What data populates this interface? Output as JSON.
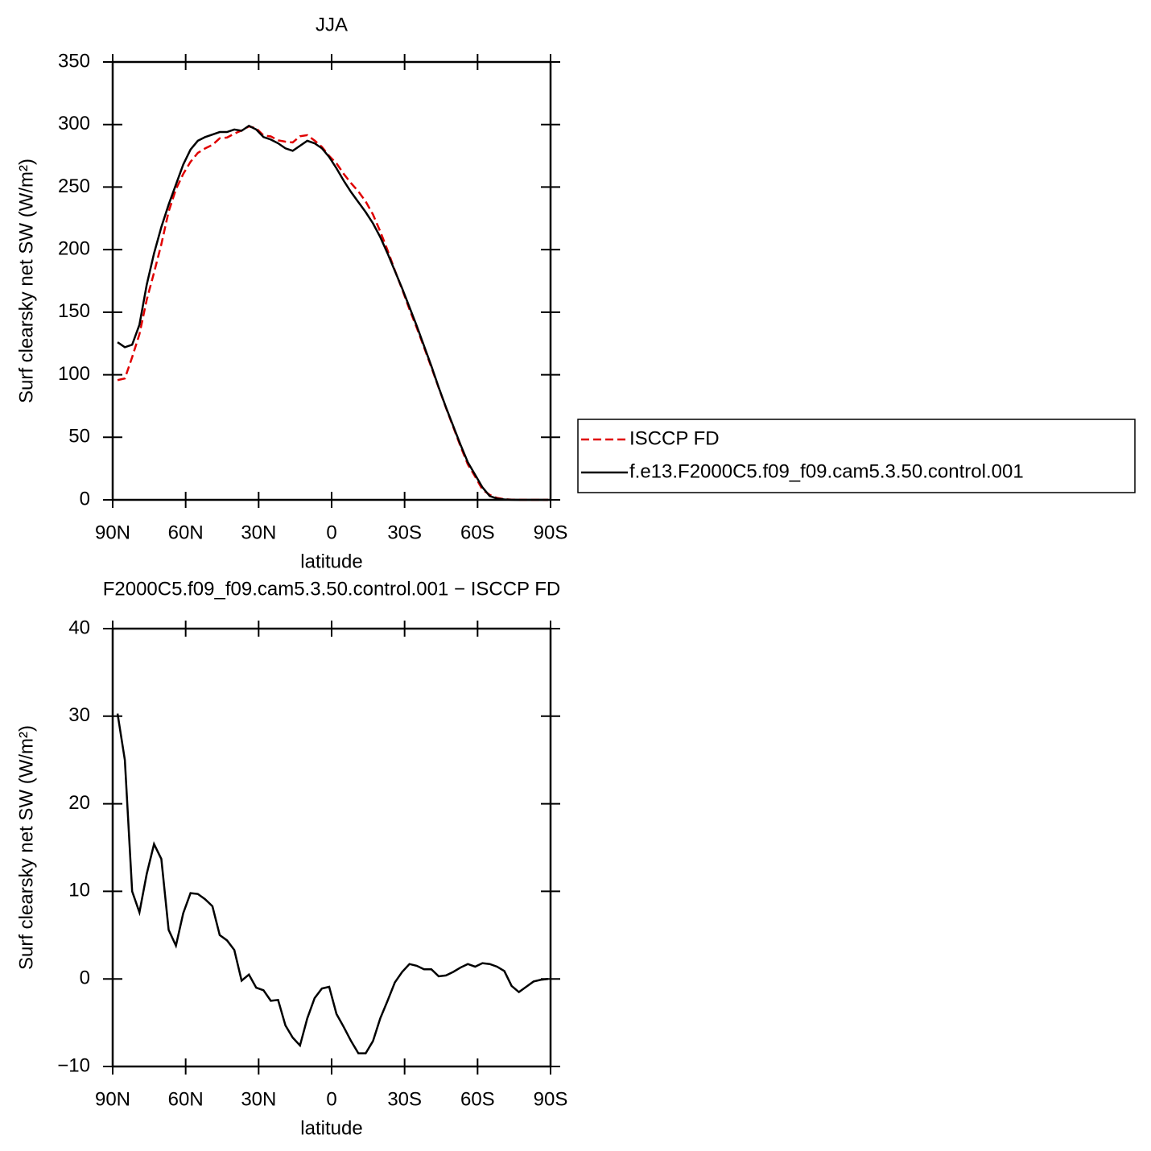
{
  "chart_data": [
    {
      "type": "line",
      "title": "JJA",
      "xlabel": "latitude",
      "ylabel": "Surf clearsky net SW (W/m²)",
      "x": [
        88,
        85,
        82,
        79,
        76,
        73,
        70,
        67,
        64,
        61,
        58,
        55,
        52,
        49,
        46,
        43,
        40,
        37,
        34,
        31,
        28,
        25,
        22,
        19,
        16,
        13,
        10,
        7,
        4,
        1,
        -2,
        -5,
        -8,
        -11,
        -14,
        -17,
        -20,
        -23,
        -26,
        -29,
        -32,
        -35,
        -38,
        -41,
        -44,
        -47,
        -50,
        -53,
        -56,
        -59,
        -62,
        -65,
        -68,
        -71,
        -74,
        -77,
        -80,
        -83,
        -86,
        -89
      ],
      "xlim": [
        90,
        -90
      ],
      "xticks": [
        {
          "value": 90,
          "label": "90N"
        },
        {
          "value": 60,
          "label": "60N"
        },
        {
          "value": 30,
          "label": "30N"
        },
        0,
        {
          "value": -30,
          "label": "30S"
        },
        {
          "value": -60,
          "label": "60S"
        },
        {
          "value": -90,
          "label": "90S"
        }
      ],
      "ylim": [
        0,
        350
      ],
      "yticks": [
        0,
        50,
        100,
        150,
        200,
        250,
        300,
        350
      ],
      "legend": "outside-right",
      "series": [
        {
          "name": "ISCCP FD",
          "color": "#e00000",
          "style": "dashed",
          "values": [
            95.7,
            97,
            114,
            132.4,
            160,
            181.6,
            204.3,
            230.4,
            248.2,
            260.5,
            270.2,
            277.3,
            280.9,
            283.7,
            289,
            289.6,
            292.7,
            295.2,
            298.5,
            297,
            291.3,
            290.5,
            287.4,
            286.3,
            285.7,
            290.6,
            291.5,
            287.2,
            282.1,
            274.9,
            269,
            260.5,
            253.1,
            246.5,
            238.5,
            228.1,
            214.5,
            199.5,
            183.4,
            168.2,
            152.3,
            137.5,
            121.9,
            105.9,
            89.7,
            73.6,
            58.2,
            42.7,
            28.3,
            18.6,
            8.2,
            4,
            1.5,
            0.5,
            0.2,
            0.1,
            0,
            0,
            0,
            0
          ]
        },
        {
          "name": "f.e13.F2000C5.f09_f09.cam5.3.50.control.001",
          "color": "#000000",
          "style": "solid",
          "values": [
            126,
            122,
            124,
            140,
            172,
            197,
            218,
            236,
            252,
            268,
            280,
            287,
            290,
            292,
            294,
            294,
            296,
            295,
            299,
            296,
            290,
            288,
            285,
            281,
            279,
            283,
            287,
            285,
            281,
            274,
            265,
            255,
            246,
            238,
            230,
            221,
            210,
            197,
            183,
            169,
            154,
            139,
            123,
            107,
            90,
            74,
            59,
            44,
            30,
            20,
            10,
            3,
            1,
            0.3,
            0.1,
            0,
            0,
            0,
            0,
            0
          ]
        }
      ]
    },
    {
      "type": "line",
      "title": "F2000C5.f09_f09.cam5.3.50.control.001 − ISCCP FD",
      "xlabel": "latitude",
      "ylabel": "Surf clearsky net SW (W/m²)",
      "x": [
        88,
        85,
        82,
        79,
        76,
        73,
        70,
        67,
        64,
        61,
        58,
        55,
        52,
        49,
        46,
        43,
        40,
        37,
        34,
        31,
        28,
        25,
        22,
        19,
        16,
        13,
        10,
        7,
        4,
        1,
        -2,
        -5,
        -8,
        -11,
        -14,
        -17,
        -20,
        -23,
        -26,
        -29,
        -32,
        -35,
        -38,
        -41,
        -44,
        -47,
        -50,
        -53,
        -56,
        -59,
        -62,
        -65,
        -68,
        -71,
        -74,
        -77,
        -80,
        -83,
        -86,
        -89
      ],
      "xlim": [
        90,
        -90
      ],
      "xticks": [
        {
          "value": 90,
          "label": "90N"
        },
        {
          "value": 60,
          "label": "60N"
        },
        {
          "value": 30,
          "label": "30N"
        },
        0,
        {
          "value": -30,
          "label": "30S"
        },
        {
          "value": -60,
          "label": "60S"
        },
        {
          "value": -90,
          "label": "90S"
        }
      ],
      "ylim": [
        -10,
        40
      ],
      "yticks": [
        {
          "value": -10,
          "label": "−10"
        },
        0,
        10,
        20,
        30,
        40
      ],
      "series": [
        {
          "color": "#000000",
          "style": "solid",
          "values": [
            30.3,
            25,
            10,
            7.6,
            12,
            15.4,
            13.7,
            5.6,
            3.8,
            7.5,
            9.8,
            9.7,
            9.1,
            8.3,
            5,
            4.4,
            3.3,
            -0.2,
            0.5,
            -1,
            -1.3,
            -2.5,
            -2.4,
            -5.3,
            -6.7,
            -7.6,
            -4.5,
            -2.2,
            -1.1,
            -0.9,
            -4,
            -5.5,
            -7.1,
            -8.5,
            -8.5,
            -7.1,
            -4.5,
            -2.5,
            -0.4,
            0.8,
            1.7,
            1.5,
            1.1,
            1.1,
            0.3,
            0.4,
            0.8,
            1.3,
            1.7,
            1.4,
            1.8,
            1.7,
            1.4,
            0.9,
            -0.8,
            -1.5,
            -0.9,
            -0.3,
            -0.1,
            0
          ]
        }
      ]
    }
  ]
}
